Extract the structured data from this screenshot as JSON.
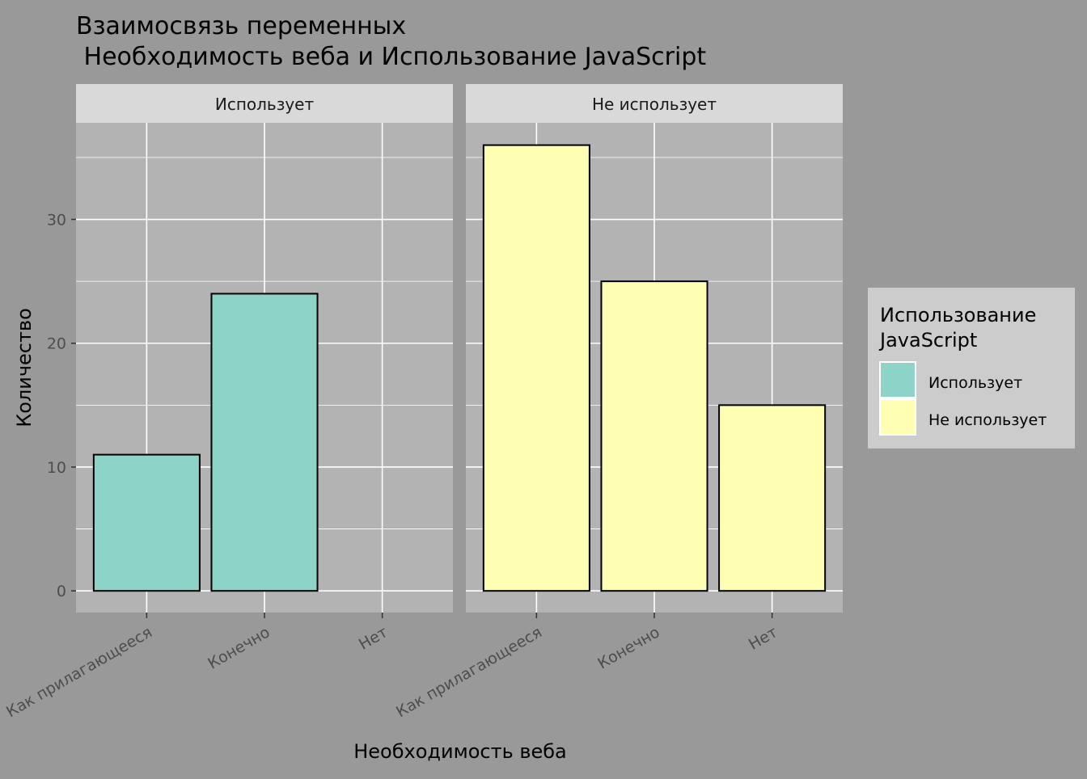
{
  "chart_data": {
    "type": "bar",
    "title_line1": "Взаимосвязь переменных",
    "title_line2": " Необходимость веба и Использование JavaScript",
    "xlabel": "Необходимость веба",
    "ylabel": "Количество",
    "categories": [
      "Как прилагающееся",
      "Конечно",
      "Нет"
    ],
    "ylim": [
      -1.75,
      37.8
    ],
    "yticks": [
      0,
      10,
      20,
      30
    ],
    "grid": true,
    "panels": [
      {
        "strip": "Использует",
        "series": "Использует",
        "values": [
          11,
          24,
          0
        ]
      },
      {
        "strip": "Не использует",
        "series": "Не использует",
        "values": [
          36,
          25,
          15
        ]
      }
    ],
    "legend": {
      "title_line1": "Использование",
      "title_line2": "JavaScript",
      "position": "right",
      "items": [
        {
          "label": "Использует",
          "color": "#8DD3C7"
        },
        {
          "label": "Не использует",
          "color": "#FFFFB3"
        }
      ]
    },
    "colors": {
      "background": "#999999",
      "panel": "#B3B3B3",
      "strip": "#D9D9D9",
      "legend_bg": "#CCCCCC",
      "grid": "#FFFFFF",
      "bar_outline": "#000000"
    }
  }
}
